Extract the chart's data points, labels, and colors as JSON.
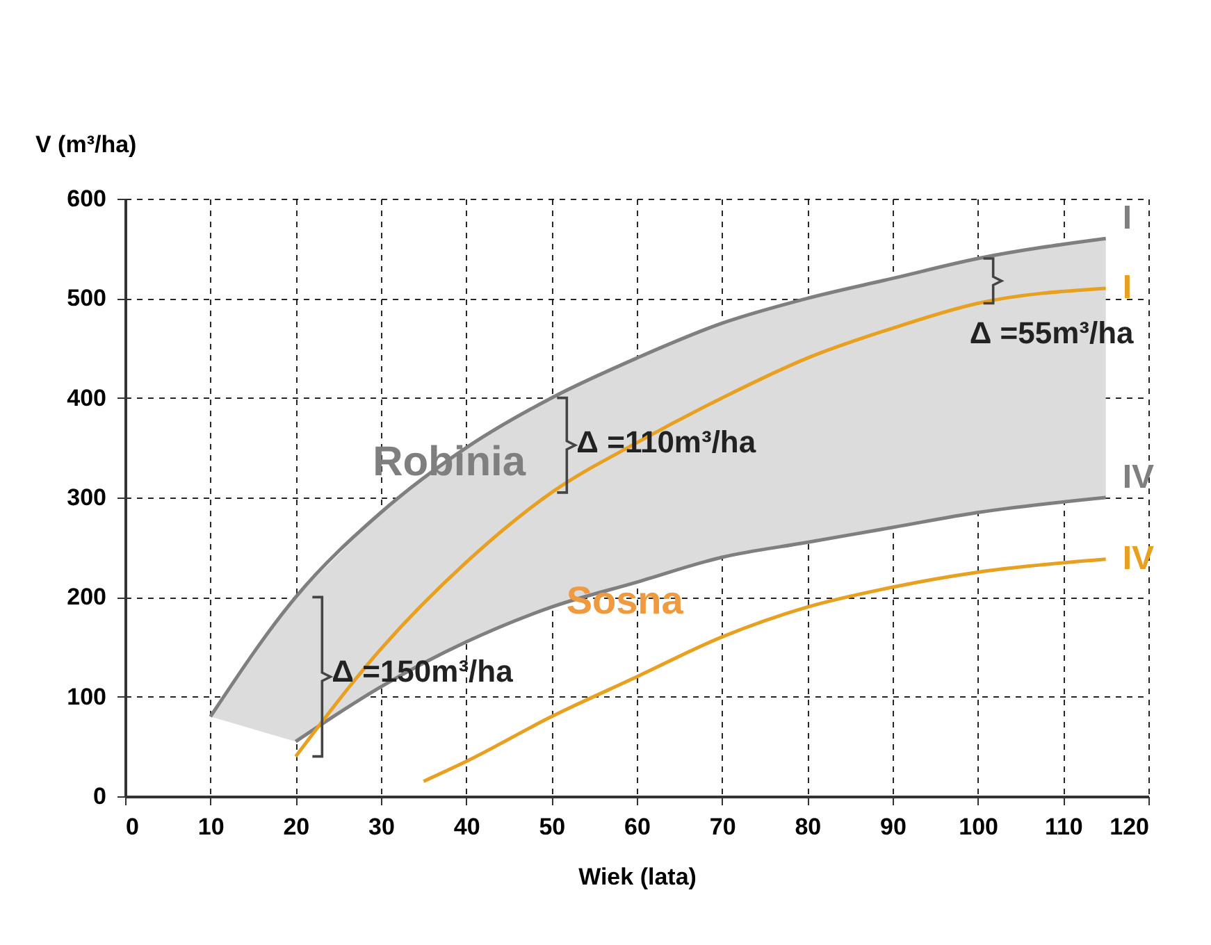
{
  "chart_data": {
    "type": "line",
    "xlabel": "Wiek (lata)",
    "ylabel": "V (m³/ha)",
    "xlim": [
      0,
      120
    ],
    "ylim": [
      0,
      600
    ],
    "xticks": [
      0,
      10,
      20,
      30,
      40,
      50,
      60,
      70,
      80,
      90,
      100,
      110,
      120
    ],
    "yticks": [
      0,
      100,
      200,
      300,
      400,
      500,
      600
    ],
    "grid": true,
    "marker": "none",
    "line_style": "solid",
    "series": [
      {
        "name": "I",
        "color": "#7f7f7f",
        "x": [
          10,
          20,
          30,
          40,
          50,
          60,
          70,
          80,
          90,
          100,
          115
        ],
        "values": [
          80,
          200,
          285,
          350,
          400,
          440,
          475,
          500,
          520,
          540,
          560
        ],
        "lower": [
          80,
          55,
          110,
          155,
          190,
          215,
          240,
          255,
          270,
          285,
          300
        ],
        "upper": [
          80,
          200,
          285,
          350,
          400,
          440,
          475,
          500,
          520,
          540,
          560
        ]
      },
      {
        "name": "IV",
        "color": "#7f7f7f",
        "x": [
          20,
          30,
          40,
          50,
          60,
          70,
          80,
          90,
          100,
          115
        ],
        "values": [
          55,
          110,
          155,
          190,
          215,
          240,
          255,
          270,
          285,
          300
        ]
      },
      {
        "name": "I",
        "color": "#e8a020",
        "x": [
          20,
          30,
          40,
          50,
          60,
          70,
          80,
          90,
          100,
          115
        ],
        "values": [
          40,
          148,
          235,
          305,
          355,
          400,
          440,
          470,
          495,
          510
        ]
      },
      {
        "name": "IV",
        "color": "#e8a020",
        "x": [
          35,
          40,
          50,
          60,
          70,
          80,
          90,
          100,
          115
        ],
        "values": [
          15,
          35,
          80,
          120,
          160,
          190,
          210,
          225,
          238
        ]
      }
    ],
    "annotations": [
      {
        "text": "Robinia",
        "x": 38,
        "y": 335
      },
      {
        "text": "Sosna",
        "x": 55,
        "y": 195
      },
      {
        "text": "Δ =150m³/ha",
        "x": 20,
        "y": 200
      },
      {
        "text": "Δ =110m³/ha",
        "x": 50,
        "y": 400
      },
      {
        "text": "Δ =55m³/ha",
        "x": 100,
        "y": 540
      }
    ]
  }
}
